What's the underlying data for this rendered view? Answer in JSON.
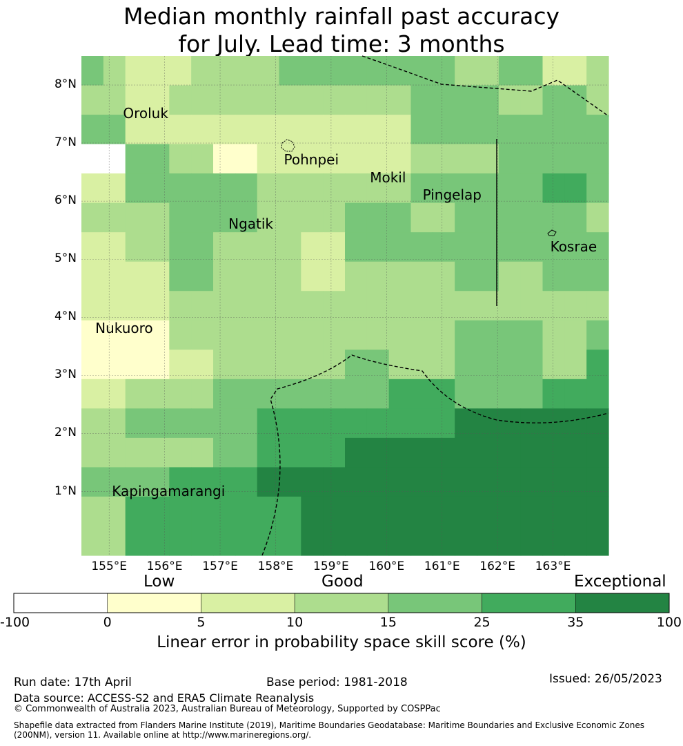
{
  "title": {
    "line1": "Median monthly rainfall past accuracy",
    "line2": "for July. Lead time: 3 months"
  },
  "map": {
    "lon_ticks": [
      "155°E",
      "156°E",
      "157°E",
      "158°E",
      "159°E",
      "160°E",
      "161°E",
      "162°E",
      "163°E"
    ],
    "lat_ticks": [
      "8°N",
      "7°N",
      "6°N",
      "5°N",
      "4°N",
      "3°N",
      "2°N",
      "1°N"
    ],
    "places": [
      {
        "name": "Oroluk",
        "lon": 155.3,
        "lat": 7.5
      },
      {
        "name": "Pohnpei",
        "lon": 158.2,
        "lat": 6.7
      },
      {
        "name": "Mokil",
        "lon": 159.75,
        "lat": 6.4
      },
      {
        "name": "Pingelap",
        "lon": 160.7,
        "lat": 6.1
      },
      {
        "name": "Ngatik",
        "lon": 157.2,
        "lat": 5.6
      },
      {
        "name": "Kosrae",
        "lon": 163.0,
        "lat": 5.2
      },
      {
        "name": "Nukuoro",
        "lon": 154.8,
        "lat": 3.8
      },
      {
        "name": "Kapingamarangi",
        "lon": 155.1,
        "lat": 1.0
      }
    ],
    "grid": [
      [
        4,
        3,
        2,
        2,
        2,
        3,
        3,
        3,
        3,
        4,
        4,
        4,
        4,
        4,
        4,
        4,
        4,
        3,
        3,
        4,
        4,
        2,
        2,
        3
      ],
      [
        3,
        3,
        2,
        2,
        3,
        3,
        3,
        3,
        3,
        3,
        3,
        3,
        3,
        3,
        3,
        4,
        4,
        4,
        4,
        3,
        3,
        4,
        4,
        3
      ],
      [
        4,
        4,
        2,
        2,
        2,
        2,
        2,
        2,
        2,
        2,
        2,
        2,
        2,
        2,
        2,
        4,
        4,
        4,
        4,
        4,
        4,
        4,
        4,
        4
      ],
      [
        0,
        0,
        4,
        4,
        3,
        3,
        1,
        1,
        2,
        2,
        2,
        2,
        2,
        2,
        2,
        3,
        3,
        3,
        3,
        4,
        4,
        4,
        4,
        4
      ],
      [
        2,
        2,
        4,
        4,
        4,
        4,
        4,
        4,
        3,
        3,
        3,
        3,
        3,
        3,
        3,
        4,
        4,
        4,
        4,
        4,
        4,
        5,
        5,
        4
      ],
      [
        3,
        3,
        3,
        3,
        4,
        4,
        4,
        4,
        3,
        3,
        3,
        3,
        4,
        4,
        4,
        3,
        3,
        4,
        4,
        4,
        4,
        4,
        4,
        3
      ],
      [
        2,
        2,
        3,
        3,
        4,
        4,
        3,
        3,
        3,
        3,
        2,
        2,
        4,
        4,
        4,
        4,
        4,
        4,
        4,
        4,
        4,
        4,
        4,
        4
      ],
      [
        2,
        2,
        2,
        2,
        4,
        4,
        3,
        3,
        3,
        3,
        2,
        2,
        3,
        3,
        3,
        3,
        3,
        4,
        4,
        3,
        3,
        4,
        4,
        4
      ],
      [
        2,
        2,
        2,
        2,
        3,
        3,
        3,
        3,
        3,
        3,
        3,
        3,
        3,
        3,
        3,
        3,
        3,
        3,
        3,
        3,
        3,
        3,
        3,
        3
      ],
      [
        1,
        1,
        1,
        1,
        3,
        3,
        3,
        3,
        3,
        3,
        3,
        3,
        3,
        3,
        3,
        3,
        3,
        4,
        4,
        4,
        4,
        3,
        3,
        4
      ],
      [
        1,
        1,
        1,
        1,
        2,
        2,
        3,
        3,
        3,
        3,
        3,
        3,
        4,
        4,
        3,
        3,
        3,
        4,
        4,
        4,
        4,
        3,
        3,
        5
      ],
      [
        2,
        2,
        3,
        3,
        3,
        3,
        4,
        4,
        4,
        4,
        4,
        4,
        4,
        4,
        5,
        5,
        5,
        4,
        4,
        4,
        4,
        5,
        5,
        5
      ],
      [
        3,
        3,
        4,
        4,
        4,
        4,
        4,
        4,
        5,
        5,
        5,
        5,
        5,
        5,
        5,
        5,
        5,
        6,
        6,
        6,
        6,
        6,
        6,
        6
      ],
      [
        3,
        3,
        3,
        3,
        3,
        3,
        4,
        4,
        5,
        5,
        5,
        5,
        6,
        6,
        6,
        6,
        6,
        6,
        6,
        6,
        6,
        6,
        6,
        6
      ],
      [
        4,
        4,
        4,
        4,
        5,
        5,
        5,
        5,
        6,
        6,
        6,
        6,
        6,
        6,
        6,
        6,
        6,
        6,
        6,
        6,
        6,
        6,
        6,
        6
      ],
      [
        3,
        3,
        5,
        5,
        5,
        5,
        5,
        5,
        5,
        5,
        6,
        6,
        6,
        6,
        6,
        6,
        6,
        6,
        6,
        6,
        6,
        6,
        6,
        6
      ],
      [
        3,
        3,
        5,
        5,
        5,
        5,
        5,
        5,
        5,
        5,
        6,
        6,
        6,
        6,
        6,
        6,
        6,
        6,
        6,
        6,
        6,
        6,
        6,
        6
      ]
    ]
  },
  "legend": {
    "categories": [
      "Low",
      "Good",
      "Exceptional"
    ],
    "colors": [
      "#ffffff",
      "#ffffcc",
      "#d9f0a3",
      "#addd8e",
      "#78c679",
      "#41ab5d",
      "#238443"
    ],
    "ticks": [
      "-100",
      "0",
      "5",
      "10",
      "15",
      "25",
      "35",
      "100"
    ],
    "label": "Linear error in probability space skill score (%)"
  },
  "footer": {
    "run_date": "Run date: 17th April",
    "base_period": "Base period: 1981-2018",
    "issued": "Issued: 26/05/2023",
    "data_source": "Data source: ACCESS-S2 and ERA5 Climate Reanalysis",
    "copyright": "© Commonwealth of Australia 2023, Australian Bureau of Meteorology, Supported by COSPPac",
    "shapefile_line1": "Shapefile data extracted from Flanders Marine Institute (2019), Maritime Boundaries Geodatabase: Maritime Boundaries and Exclusive Economic Zones",
    "shapefile_line2": "(200NM), version 11. Available online at http://www.marineregions.org/."
  }
}
